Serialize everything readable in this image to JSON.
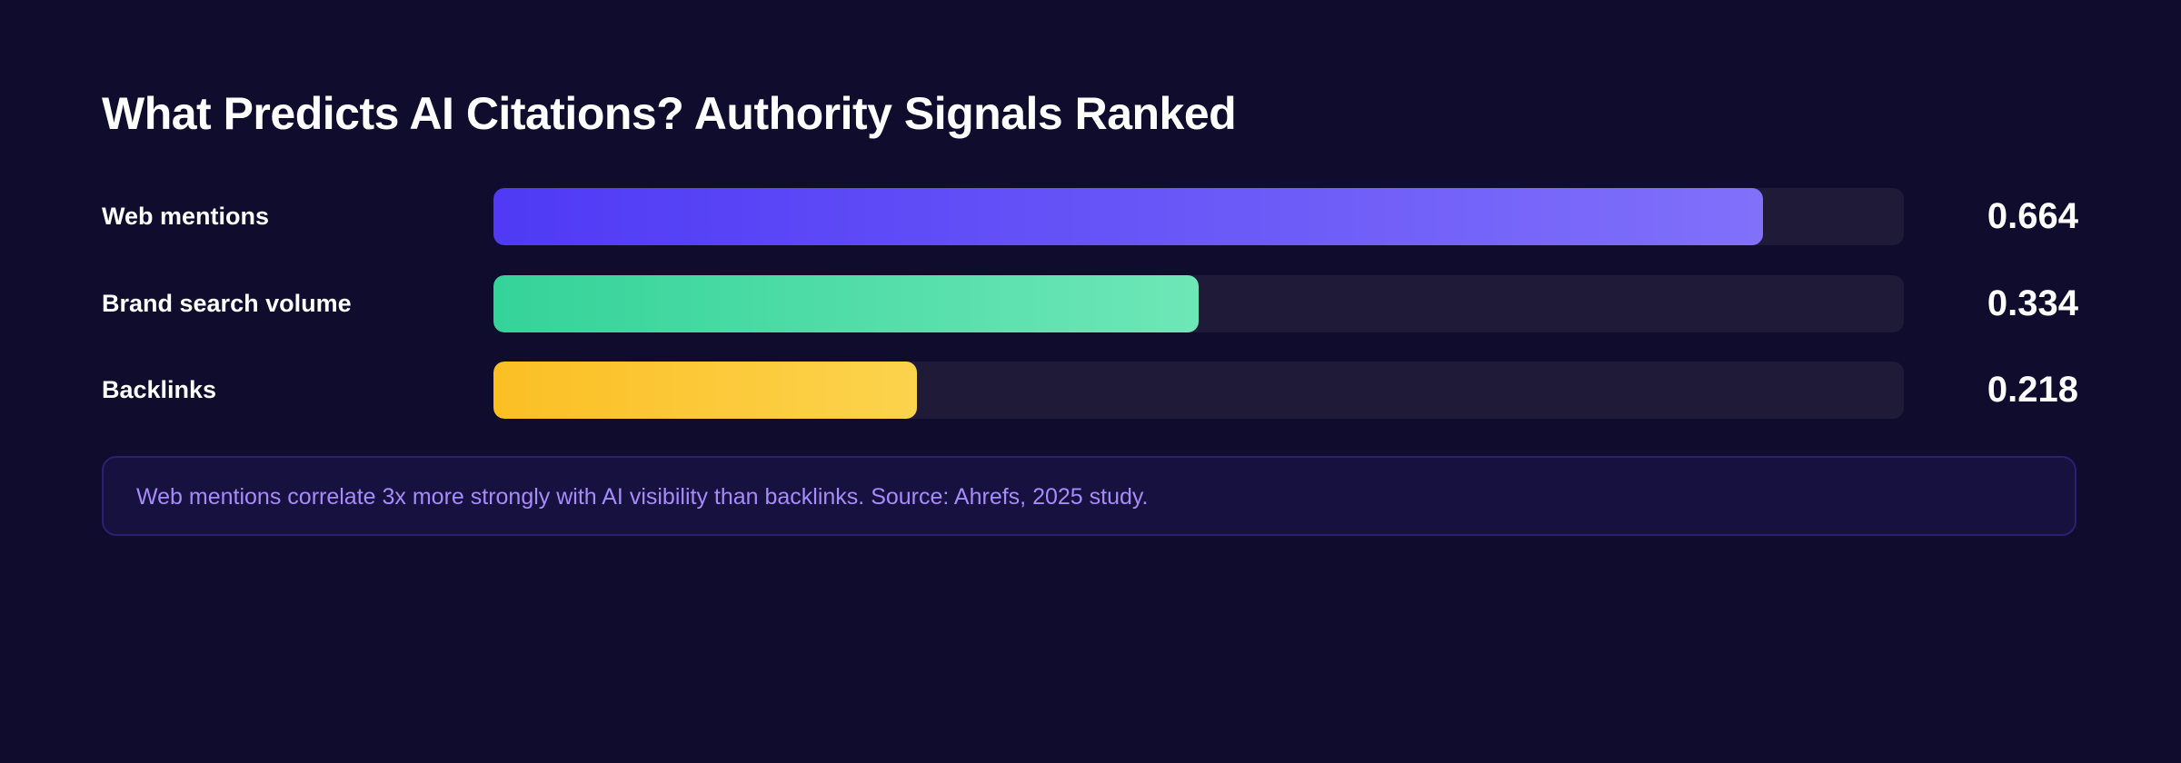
{
  "chart_data": {
    "type": "bar",
    "orientation": "horizontal",
    "title": "What Predicts AI Citations? Authority Signals Ranked",
    "categories": [
      "Web mentions",
      "Brand search volume",
      "Backlinks"
    ],
    "values": [
      0.664,
      0.334,
      0.218
    ],
    "value_labels": [
      "0.664",
      "0.334",
      "0.218"
    ],
    "fill_percent": [
      90,
      50,
      30
    ],
    "colors": [
      [
        "#4f3af5",
        "#8070fa"
      ],
      [
        "#34d399",
        "#6ee7b7"
      ],
      [
        "#fbbf24",
        "#fcd34d"
      ]
    ],
    "grid": false,
    "legend": "none"
  },
  "note": "Web mentions correlate 3x more strongly with AI visibility than backlinks. Source: Ahrefs, 2025 study."
}
